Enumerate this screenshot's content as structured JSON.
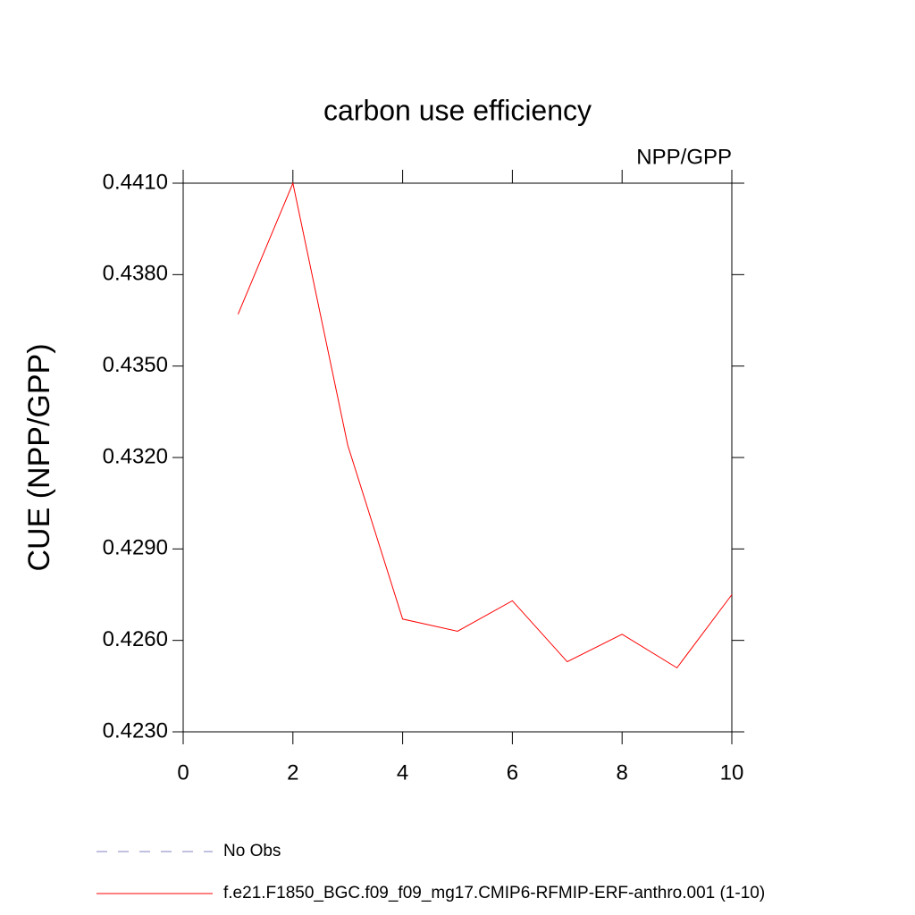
{
  "chart_data": {
    "type": "line",
    "title": "carbon use efficiency",
    "subtitle": "NPP/GPP",
    "y_label": "CUE  (NPP/GPP)",
    "x": [
      1,
      2,
      3,
      4,
      5,
      6,
      7,
      8,
      9,
      10
    ],
    "series": [
      {
        "name": "No Obs",
        "color": "#8080c0",
        "dashed": true,
        "values": [
          null,
          null,
          null,
          null,
          null,
          null,
          null,
          null,
          null,
          null
        ]
      },
      {
        "name": "f.e21.F1850_BGC.f09_f09_mg17.CMIP6-RFMIP-ERF-anthro.001 (1-10)",
        "color": "#ff0000",
        "dashed": false,
        "values": [
          0.4367,
          0.441,
          0.4324,
          0.4267,
          0.4263,
          0.4273,
          0.4253,
          0.4262,
          0.4251,
          0.4275
        ]
      }
    ],
    "xlim": [
      0,
      10
    ],
    "ylim": [
      0.423,
      0.441
    ],
    "xticks": [
      0,
      2,
      4,
      6,
      8,
      10
    ],
    "yticks": [
      {
        "value": 0.423,
        "label": "0.4230"
      },
      {
        "value": 0.426,
        "label": "0.4260"
      },
      {
        "value": 0.429,
        "label": "0.4290"
      },
      {
        "value": 0.432,
        "label": "0.4320"
      },
      {
        "value": 0.435,
        "label": "0.4350"
      },
      {
        "value": 0.438,
        "label": "0.4380"
      },
      {
        "value": 0.441,
        "label": "0.4410"
      }
    ]
  }
}
